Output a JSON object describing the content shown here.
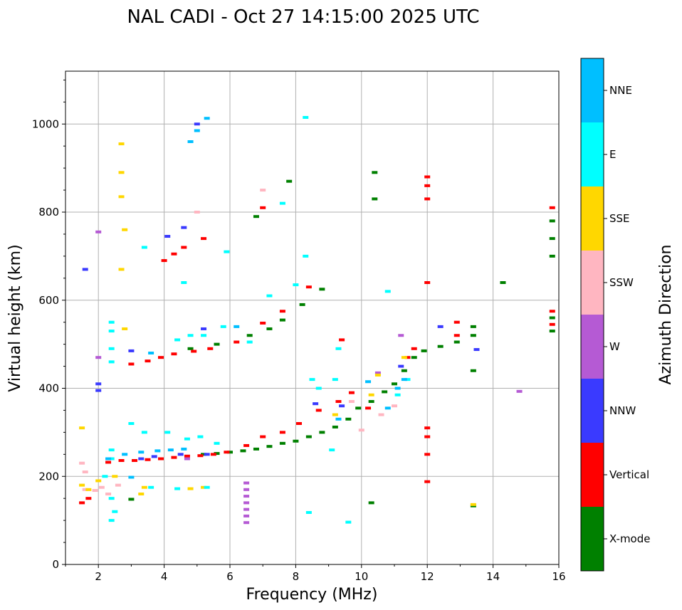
{
  "chart_data": {
    "type": "scatter",
    "title": "NAL CADI - Oct 27 14:15:00 2025 UTC",
    "xlabel": "Frequency (MHz)",
    "ylabel": "Virtual height (km)",
    "xlim": [
      1,
      16
    ],
    "ylim": [
      0,
      1120
    ],
    "xticks": [
      2,
      4,
      6,
      8,
      10,
      12,
      14,
      16
    ],
    "yticks": [
      0,
      200,
      400,
      600,
      800,
      1000
    ],
    "grid": true,
    "colorbar": {
      "label": "Azimuth Direction",
      "categories": [
        {
          "name": "X-mode",
          "color": "#008000"
        },
        {
          "name": "Vertical",
          "color": "#ff0000"
        },
        {
          "name": "NNW",
          "color": "#3a3aff"
        },
        {
          "name": "W",
          "color": "#b55ad4"
        },
        {
          "name": "SSW",
          "color": "#ffb6c1"
        },
        {
          "name": "SSE",
          "color": "#ffd700"
        },
        {
          "name": "E",
          "color": "#00ffff"
        },
        {
          "name": "NNE",
          "color": "#00bfff"
        }
      ]
    },
    "series": [
      {
        "name": "X-mode",
        "points": [
          [
            5.2,
            250
          ],
          [
            5.6,
            252
          ],
          [
            6.0,
            255
          ],
          [
            6.4,
            258
          ],
          [
            6.8,
            262
          ],
          [
            7.2,
            268
          ],
          [
            7.6,
            275
          ],
          [
            8.0,
            280
          ],
          [
            8.4,
            290
          ],
          [
            8.8,
            300
          ],
          [
            9.2,
            312
          ],
          [
            9.6,
            330
          ],
          [
            9.9,
            355
          ],
          [
            10.3,
            370
          ],
          [
            10.7,
            392
          ],
          [
            11.0,
            410
          ],
          [
            11.3,
            440
          ],
          [
            11.6,
            470
          ],
          [
            11.9,
            485
          ],
          [
            12.4,
            495
          ],
          [
            12.9,
            505
          ],
          [
            13.4,
            520
          ],
          [
            14.3,
            640
          ],
          [
            15.8,
            560
          ],
          [
            15.8,
            530
          ],
          [
            15.8,
            700
          ],
          [
            15.8,
            740
          ],
          [
            15.8,
            780
          ],
          [
            4.8,
            490
          ],
          [
            5.6,
            500
          ],
          [
            6.6,
            520
          ],
          [
            7.2,
            535
          ],
          [
            7.6,
            555
          ],
          [
            8.2,
            590
          ],
          [
            8.8,
            625
          ],
          [
            3.0,
            148
          ],
          [
            10.3,
            140
          ],
          [
            13.4,
            133
          ],
          [
            13.4,
            440
          ],
          [
            13.4,
            540
          ],
          [
            6.8,
            790
          ],
          [
            7.8,
            870
          ],
          [
            10.4,
            890
          ],
          [
            10.4,
            830
          ]
        ]
      },
      {
        "name": "Vertical",
        "points": [
          [
            2.3,
            232
          ],
          [
            2.7,
            236
          ],
          [
            3.1,
            236
          ],
          [
            3.5,
            238
          ],
          [
            3.9,
            240
          ],
          [
            4.3,
            243
          ],
          [
            4.7,
            246
          ],
          [
            5.1,
            247
          ],
          [
            5.5,
            250
          ],
          [
            5.9,
            255
          ],
          [
            1.5,
            140
          ],
          [
            1.7,
            150
          ],
          [
            6.5,
            270
          ],
          [
            7.0,
            290
          ],
          [
            7.6,
            300
          ],
          [
            8.1,
            320
          ],
          [
            8.7,
            350
          ],
          [
            9.3,
            370
          ],
          [
            9.7,
            390
          ],
          [
            3.0,
            455
          ],
          [
            3.5,
            462
          ],
          [
            3.9,
            470
          ],
          [
            4.3,
            478
          ],
          [
            4.9,
            484
          ],
          [
            5.4,
            490
          ],
          [
            6.2,
            505
          ],
          [
            7.0,
            548
          ],
          [
            7.6,
            575
          ],
          [
            8.4,
            630
          ],
          [
            4.0,
            690
          ],
          [
            4.3,
            705
          ],
          [
            4.6,
            720
          ],
          [
            5.2,
            740
          ],
          [
            12.0,
            188
          ],
          [
            12.0,
            250
          ],
          [
            12.0,
            290
          ],
          [
            12.0,
            310
          ],
          [
            12.0,
            640
          ],
          [
            12.0,
            830
          ],
          [
            12.0,
            860
          ],
          [
            12.0,
            880
          ],
          [
            12.9,
            520
          ],
          [
            12.9,
            550
          ],
          [
            11.4,
            470
          ],
          [
            11.6,
            490
          ],
          [
            15.8,
            810
          ],
          [
            15.8,
            545
          ],
          [
            15.8,
            575
          ],
          [
            9.4,
            510
          ],
          [
            10.2,
            355
          ],
          [
            7.0,
            810
          ]
        ]
      },
      {
        "name": "NNW",
        "points": [
          [
            2.0,
            410
          ],
          [
            2.0,
            395
          ],
          [
            1.6,
            670
          ],
          [
            3.3,
            240
          ],
          [
            3.7,
            245
          ],
          [
            4.5,
            250
          ],
          [
            5.3,
            250
          ],
          [
            8.6,
            365
          ],
          [
            9.4,
            360
          ],
          [
            11.2,
            450
          ],
          [
            12.4,
            540
          ],
          [
            13.5,
            488
          ],
          [
            5.0,
            1000
          ],
          [
            4.1,
            745
          ],
          [
            4.6,
            765
          ],
          [
            5.2,
            535
          ],
          [
            3.0,
            485
          ]
        ]
      },
      {
        "name": "W",
        "points": [
          [
            2.0,
            755
          ],
          [
            2.0,
            470
          ],
          [
            6.5,
            185
          ],
          [
            6.5,
            170
          ],
          [
            6.5,
            155
          ],
          [
            6.5,
            140
          ],
          [
            6.5,
            125
          ],
          [
            6.5,
            110
          ],
          [
            6.5,
            95
          ],
          [
            11.2,
            520
          ],
          [
            10.5,
            435
          ],
          [
            4.7,
            240
          ],
          [
            14.8,
            393
          ]
        ]
      },
      {
        "name": "SSW",
        "points": [
          [
            1.6,
            170
          ],
          [
            1.9,
            168
          ],
          [
            2.1,
            175
          ],
          [
            2.3,
            160
          ],
          [
            2.6,
            180
          ],
          [
            1.5,
            230
          ],
          [
            1.6,
            210
          ],
          [
            10.0,
            305
          ],
          [
            10.6,
            340
          ],
          [
            11.0,
            360
          ],
          [
            9.7,
            370
          ],
          [
            7.0,
            850
          ],
          [
            5.0,
            800
          ]
        ]
      },
      {
        "name": "SSE",
        "points": [
          [
            1.5,
            180
          ],
          [
            1.7,
            170
          ],
          [
            2.0,
            190
          ],
          [
            2.5,
            200
          ],
          [
            3.4,
            175
          ],
          [
            3.3,
            160
          ],
          [
            4.8,
            172
          ],
          [
            5.2,
            175
          ],
          [
            2.7,
            955
          ],
          [
            2.7,
            890
          ],
          [
            2.7,
            835
          ],
          [
            2.8,
            760
          ],
          [
            2.7,
            670
          ],
          [
            2.8,
            535
          ],
          [
            10.3,
            385
          ],
          [
            10.5,
            430
          ],
          [
            11.3,
            470
          ],
          [
            13.4,
            136
          ],
          [
            9.2,
            340
          ],
          [
            1.5,
            310
          ]
        ]
      },
      {
        "name": "E",
        "points": [
          [
            2.4,
            460
          ],
          [
            2.4,
            490
          ],
          [
            2.4,
            530
          ],
          [
            2.4,
            550
          ],
          [
            2.4,
            260
          ],
          [
            2.4,
            240
          ],
          [
            2.5,
            120
          ],
          [
            2.4,
            100
          ],
          [
            2.2,
            200
          ],
          [
            2.4,
            150
          ],
          [
            3.0,
            320
          ],
          [
            3.4,
            300
          ],
          [
            4.1,
            300
          ],
          [
            4.7,
            285
          ],
          [
            5.1,
            290
          ],
          [
            5.6,
            275
          ],
          [
            4.4,
            510
          ],
          [
            4.8,
            520
          ],
          [
            5.2,
            520
          ],
          [
            5.8,
            540
          ],
          [
            6.6,
            505
          ],
          [
            7.6,
            820
          ],
          [
            7.2,
            610
          ],
          [
            8.0,
            635
          ],
          [
            8.3,
            700
          ],
          [
            8.3,
            1015
          ],
          [
            9.3,
            490
          ],
          [
            9.1,
            260
          ],
          [
            9.2,
            420
          ],
          [
            9.6,
            96
          ],
          [
            10.8,
            620
          ],
          [
            11.4,
            420
          ],
          [
            11.1,
            385
          ],
          [
            8.5,
            420
          ],
          [
            8.7,
            400
          ],
          [
            8.4,
            118
          ],
          [
            4.6,
            640
          ],
          [
            5.9,
            710
          ],
          [
            3.4,
            720
          ],
          [
            4.4,
            172
          ],
          [
            5.3,
            175
          ],
          [
            3.6,
            175
          ]
        ]
      },
      {
        "name": "NNE",
        "points": [
          [
            2.3,
            240
          ],
          [
            2.8,
            250
          ],
          [
            3.3,
            255
          ],
          [
            3.8,
            258
          ],
          [
            4.2,
            260
          ],
          [
            4.6,
            262
          ],
          [
            5.3,
            1013
          ],
          [
            5.0,
            985
          ],
          [
            4.8,
            960
          ],
          [
            6.2,
            540
          ],
          [
            3.6,
            480
          ],
          [
            11.1,
            400
          ],
          [
            11.3,
            420
          ],
          [
            9.3,
            330
          ],
          [
            10.8,
            355
          ],
          [
            10.2,
            415
          ],
          [
            3.0,
            198
          ]
        ]
      }
    ]
  }
}
